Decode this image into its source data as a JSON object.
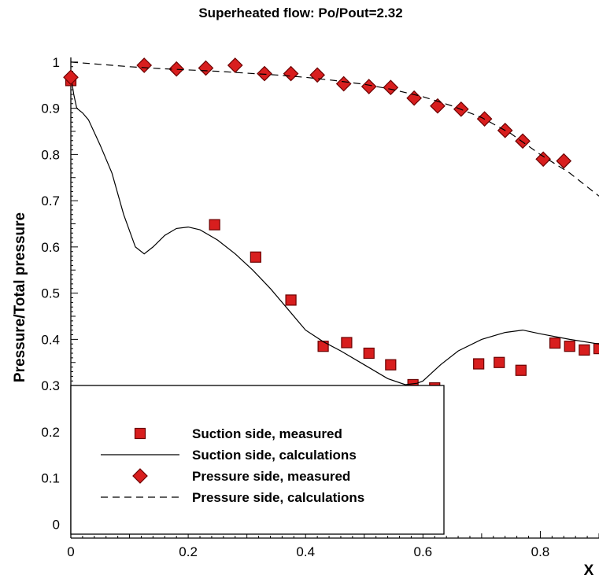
{
  "chart_data": {
    "type": "scatter",
    "title": "Superheated flow: Po/Pout=2.32",
    "xlabel": "X",
    "ylabel": "Pressure/Total pressure",
    "xlim": [
      0,
      0.9
    ],
    "ylim": [
      -0.03,
      1.01
    ],
    "x_ticks": [
      0,
      0.2,
      0.4,
      0.6,
      0.8
    ],
    "x_tick_labels": [
      "0",
      "0.2",
      "0.4",
      "0.6",
      "0.8"
    ],
    "y_ticks": [
      0,
      0.1,
      0.2,
      0.3,
      0.4,
      0.5,
      0.6,
      0.7,
      0.8,
      0.9,
      1
    ],
    "y_tick_labels": [
      "0",
      "0.1",
      "0.2",
      "0.3",
      "0.4",
      "0.5",
      "0.6",
      "0.7",
      "0.8",
      "0.9",
      "1"
    ],
    "grid": false,
    "legend_position": "bottom-left",
    "series": [
      {
        "name": "Suction side, measured",
        "style": "square-marker",
        "color": "#d81e1e",
        "x": [
          0.0,
          0.245,
          0.315,
          0.375,
          0.43,
          0.47,
          0.508,
          0.545,
          0.583,
          0.62,
          0.695,
          0.73,
          0.767,
          0.825,
          0.85,
          0.875,
          0.9
        ],
        "y": [
          0.96,
          0.648,
          0.578,
          0.485,
          0.385,
          0.393,
          0.37,
          0.345,
          0.302,
          0.295,
          0.347,
          0.35,
          0.333,
          0.392,
          0.385,
          0.377,
          0.38
        ]
      },
      {
        "name": "Suction side, calculations",
        "style": "solid-line",
        "color": "#000000",
        "x": [
          0.0,
          0.005,
          0.01,
          0.02,
          0.03,
          0.05,
          0.07,
          0.09,
          0.11,
          0.125,
          0.14,
          0.16,
          0.18,
          0.2,
          0.22,
          0.25,
          0.28,
          0.31,
          0.34,
          0.37,
          0.4,
          0.43,
          0.46,
          0.5,
          0.54,
          0.57,
          0.59,
          0.6,
          0.63,
          0.66,
          0.7,
          0.74,
          0.77,
          0.8,
          0.85,
          0.9
        ],
        "y": [
          0.97,
          0.93,
          0.9,
          0.89,
          0.875,
          0.82,
          0.76,
          0.67,
          0.6,
          0.585,
          0.6,
          0.625,
          0.64,
          0.643,
          0.637,
          0.615,
          0.585,
          0.55,
          0.51,
          0.465,
          0.42,
          0.395,
          0.375,
          0.345,
          0.315,
          0.302,
          0.305,
          0.31,
          0.345,
          0.375,
          0.4,
          0.415,
          0.42,
          0.412,
          0.4,
          0.39
        ]
      },
      {
        "name": "Pressure side, measured",
        "style": "diamond-marker",
        "color": "#d81e1e",
        "x": [
          0.0,
          0.125,
          0.18,
          0.23,
          0.28,
          0.33,
          0.375,
          0.42,
          0.465,
          0.508,
          0.545,
          0.585,
          0.625,
          0.665,
          0.705,
          0.74,
          0.77,
          0.805,
          0.84
        ],
        "y": [
          0.967,
          0.993,
          0.985,
          0.987,
          0.993,
          0.975,
          0.975,
          0.972,
          0.953,
          0.947,
          0.945,
          0.922,
          0.905,
          0.898,
          0.877,
          0.852,
          0.829,
          0.79,
          0.786
        ]
      },
      {
        "name": "Pressure side, calculations",
        "style": "dashed-line",
        "color": "#000000",
        "x": [
          0.0,
          0.05,
          0.1,
          0.15,
          0.2,
          0.25,
          0.3,
          0.35,
          0.4,
          0.45,
          0.5,
          0.55,
          0.6,
          0.65,
          0.7,
          0.75,
          0.8,
          0.85,
          0.9
        ],
        "y": [
          1.0,
          0.995,
          0.99,
          0.986,
          0.983,
          0.98,
          0.976,
          0.972,
          0.967,
          0.96,
          0.952,
          0.94,
          0.925,
          0.905,
          0.88,
          0.845,
          0.8,
          0.76,
          0.71
        ]
      }
    ]
  }
}
